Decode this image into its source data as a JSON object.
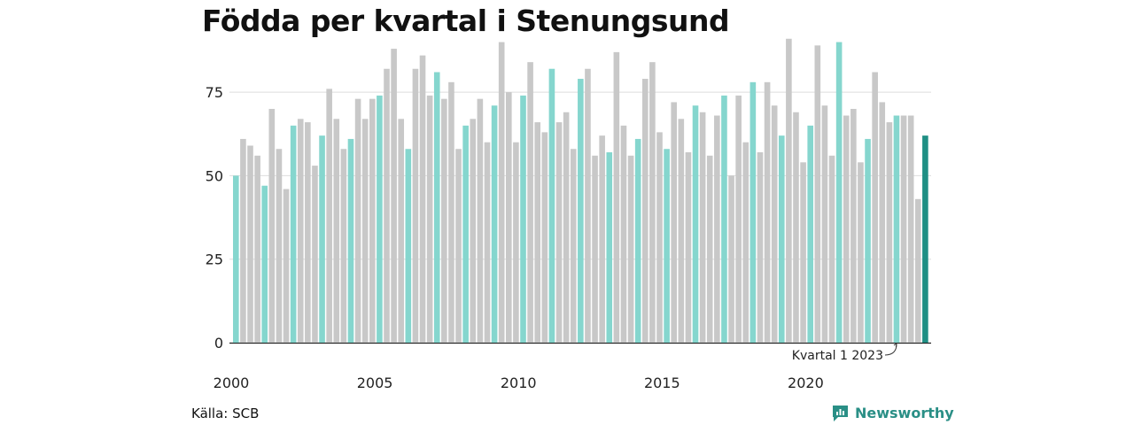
{
  "title": "Födda per kvartal i Stenungsund",
  "source": "Källa: SCB",
  "brand": {
    "name": "Newsworthy",
    "icon": "newsworthy-logo-icon"
  },
  "colors": {
    "q1": "#85d6ce",
    "other": "#c8c8c8",
    "latest": "#1f8f84",
    "grid": "#dddddd",
    "axis": "#222222",
    "brand": "#2a8f86"
  },
  "chart_data": {
    "type": "bar",
    "title": "Födda per kvartal i Stenungsund",
    "x_ticks": [
      "2000",
      "2005",
      "2010",
      "2015",
      "2020"
    ],
    "y_ticks": [
      "0",
      "25",
      "50",
      "75"
    ],
    "ylim": [
      0,
      92
    ],
    "start_year": 2000,
    "grid": "horizontal",
    "annotation": "Kvartal 1 2023",
    "highlight": "Kvartal 1 2023",
    "values": [
      50,
      61,
      59,
      56,
      47,
      70,
      58,
      46,
      65,
      67,
      66,
      53,
      62,
      76,
      67,
      58,
      61,
      73,
      67,
      73,
      74,
      82,
      88,
      67,
      58,
      82,
      86,
      74,
      81,
      73,
      78,
      58,
      65,
      67,
      73,
      60,
      71,
      90,
      75,
      60,
      74,
      84,
      66,
      63,
      82,
      66,
      69,
      58,
      79,
      82,
      56,
      62,
      57,
      87,
      65,
      56,
      61,
      79,
      84,
      63,
      58,
      72,
      67,
      57,
      71,
      69,
      56,
      68,
      74,
      50,
      74,
      60,
      78,
      57,
      78,
      71,
      62,
      91,
      69,
      54,
      65,
      89,
      71,
      56,
      90,
      68,
      70,
      54,
      61,
      81,
      72,
      66,
      68,
      68,
      68,
      43,
      62
    ]
  }
}
